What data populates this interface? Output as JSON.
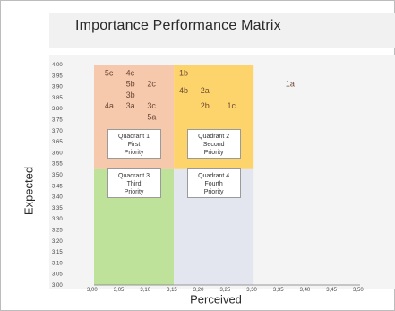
{
  "chart_data": {
    "type": "scatter",
    "title": "Importance Performance Matrix",
    "xlabel": "Perceived",
    "ylabel": "Expected",
    "xlim": [
      3.0,
      3.5
    ],
    "ylim": [
      3.0,
      4.0
    ],
    "x_ticks": [
      "3,00",
      "3,05",
      "3,10",
      "3,15",
      "3,20",
      "3,25",
      "3,30",
      "3,35",
      "3,40",
      "3,45",
      "3,50"
    ],
    "y_ticks": [
      "3,00",
      "3,05",
      "3,10",
      "3,15",
      "3,20",
      "3,25",
      "3,30",
      "3,35",
      "3,40",
      "3,45",
      "3,50",
      "3,55",
      "3,60",
      "3,65",
      "3,70",
      "3,75",
      "3,80",
      "3,85",
      "3,90",
      "3,95",
      "4,00"
    ],
    "quadrants": [
      {
        "id": "q1",
        "lines": [
          "Quadrant 1",
          "First",
          "Priority"
        ],
        "x": [
          3.0,
          3.15
        ],
        "y": [
          3.525,
          4.0
        ],
        "color": "#f6c8ac"
      },
      {
        "id": "q2",
        "lines": [
          "Quadrant 2",
          "Second",
          "Priority"
        ],
        "x": [
          3.15,
          3.3
        ],
        "y": [
          3.525,
          4.0
        ],
        "color": "#fdd46b"
      },
      {
        "id": "q3",
        "lines": [
          "Quadrant 3",
          "Third",
          "Priority"
        ],
        "x": [
          3.0,
          3.15
        ],
        "y": [
          3.0,
          3.525
        ],
        "color": "#bfe29a"
      },
      {
        "id": "q4",
        "lines": [
          "Quadrant 4",
          "Fourth",
          "Priority"
        ],
        "x": [
          3.15,
          3.3
        ],
        "y": [
          3.0,
          3.525
        ],
        "color": "#e3e6ee"
      }
    ],
    "points": [
      {
        "label": "5c",
        "x": 3.02,
        "y": 3.95
      },
      {
        "label": "4c",
        "x": 3.06,
        "y": 3.95
      },
      {
        "label": "5b",
        "x": 3.06,
        "y": 3.9
      },
      {
        "label": "2c",
        "x": 3.1,
        "y": 3.9
      },
      {
        "label": "3b",
        "x": 3.06,
        "y": 3.85
      },
      {
        "label": "4a",
        "x": 3.02,
        "y": 3.8
      },
      {
        "label": "3a",
        "x": 3.06,
        "y": 3.8
      },
      {
        "label": "3c",
        "x": 3.1,
        "y": 3.8
      },
      {
        "label": "5a",
        "x": 3.1,
        "y": 3.75
      },
      {
        "label": "1b",
        "x": 3.16,
        "y": 3.95
      },
      {
        "label": "4b",
        "x": 3.16,
        "y": 3.87
      },
      {
        "label": "2a",
        "x": 3.2,
        "y": 3.87
      },
      {
        "label": "2b",
        "x": 3.2,
        "y": 3.8
      },
      {
        "label": "1c",
        "x": 3.25,
        "y": 3.8
      },
      {
        "label": "1a",
        "x": 3.36,
        "y": 3.9
      }
    ],
    "grid": false,
    "legend": "none"
  }
}
